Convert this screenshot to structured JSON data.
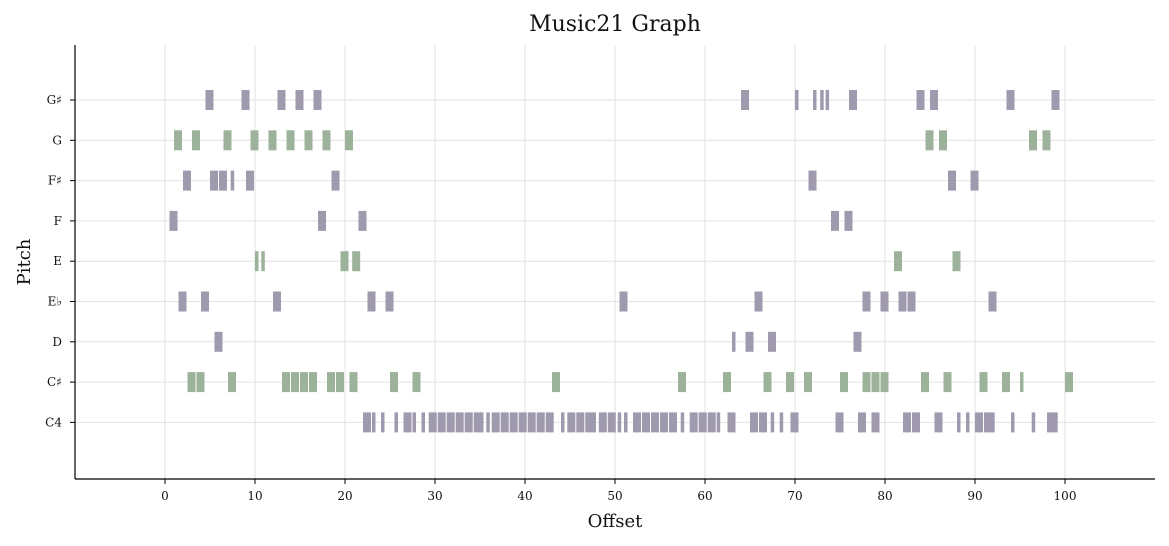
{
  "chart_data": {
    "type": "scatter",
    "title": "Music21 Graph",
    "xlabel": "Offset",
    "ylabel": "Pitch",
    "xlim": [
      -10,
      110
    ],
    "xticks": [
      0,
      10,
      20,
      30,
      40,
      50,
      60,
      70,
      80,
      90,
      100
    ],
    "pitches": [
      "C4",
      "C♯",
      "D",
      "E♭",
      "E",
      "F",
      "F♯",
      "G",
      "G♯"
    ],
    "grid": true,
    "colors": {
      "purple": "#a09aaf",
      "green": "#9cb29a",
      "grid": "#e2e2e2",
      "axis": "#000000"
    },
    "series": [
      {
        "pitch": "G♯",
        "color": "purple",
        "notes": [
          [
            4.5,
            1
          ],
          [
            8.5,
            1
          ],
          [
            12.5,
            1
          ],
          [
            14.5,
            1
          ],
          [
            16.5,
            1
          ],
          [
            64,
            1
          ],
          [
            70,
            0.5
          ],
          [
            72,
            0.5
          ],
          [
            72.8,
            0.5
          ],
          [
            73.4,
            0.5
          ],
          [
            76,
            1
          ],
          [
            83.5,
            1
          ],
          [
            85,
            1
          ],
          [
            93.5,
            1
          ],
          [
            98.5,
            1
          ]
        ]
      },
      {
        "pitch": "G",
        "color": "green",
        "notes": [
          [
            1,
            1
          ],
          [
            3,
            1
          ],
          [
            6.5,
            1
          ],
          [
            9.5,
            1
          ],
          [
            11.5,
            1
          ],
          [
            13.5,
            1
          ],
          [
            15.5,
            1
          ],
          [
            17.5,
            1
          ],
          [
            20,
            1
          ],
          [
            84.5,
            1
          ],
          [
            86,
            1
          ],
          [
            96,
            1
          ],
          [
            97.5,
            1
          ]
        ]
      },
      {
        "pitch": "F♯",
        "color": "purple",
        "notes": [
          [
            2,
            1
          ],
          [
            5,
            1
          ],
          [
            6,
            1
          ],
          [
            7.3,
            0.5
          ],
          [
            9,
            1
          ],
          [
            18.5,
            1
          ],
          [
            71.5,
            1
          ],
          [
            87,
            1
          ],
          [
            89.5,
            1
          ]
        ]
      },
      {
        "pitch": "F",
        "color": "purple",
        "notes": [
          [
            0.5,
            1
          ],
          [
            17,
            1
          ],
          [
            21.5,
            1
          ],
          [
            74,
            1
          ],
          [
            75.5,
            1
          ]
        ]
      },
      {
        "pitch": "E",
        "color": "green",
        "notes": [
          [
            10,
            0.5
          ],
          [
            10.7,
            0.5
          ],
          [
            19.5,
            1
          ],
          [
            20.8,
            1
          ],
          [
            81,
            1
          ],
          [
            87.5,
            1
          ]
        ]
      },
      {
        "pitch": "E♭",
        "color": "purple",
        "notes": [
          [
            1.5,
            1
          ],
          [
            4,
            1
          ],
          [
            12,
            1
          ],
          [
            22.5,
            1
          ],
          [
            24.5,
            1
          ],
          [
            50.5,
            1
          ],
          [
            65.5,
            1
          ],
          [
            77.5,
            1
          ],
          [
            79.5,
            1
          ],
          [
            81.5,
            1
          ],
          [
            82.5,
            1
          ],
          [
            91.5,
            1
          ]
        ]
      },
      {
        "pitch": "D",
        "color": "purple",
        "notes": [
          [
            5.5,
            1
          ],
          [
            63,
            0.5
          ],
          [
            64.5,
            1
          ],
          [
            67,
            1
          ],
          [
            76.5,
            1
          ]
        ]
      },
      {
        "pitch": "C♯",
        "color": "green",
        "notes": [
          [
            2.5,
            1
          ],
          [
            3.5,
            1
          ],
          [
            7,
            1
          ],
          [
            13,
            1
          ],
          [
            14,
            1
          ],
          [
            15,
            1
          ],
          [
            16,
            1
          ],
          [
            18,
            1
          ],
          [
            19,
            1
          ],
          [
            20.5,
            1
          ],
          [
            25,
            1
          ],
          [
            27.5,
            1
          ],
          [
            43,
            1
          ],
          [
            57,
            1
          ],
          [
            62,
            1
          ],
          [
            66.5,
            1
          ],
          [
            69,
            1
          ],
          [
            71,
            1
          ],
          [
            75,
            1
          ],
          [
            77.5,
            1
          ],
          [
            78.5,
            1
          ],
          [
            79.5,
            1
          ],
          [
            84,
            1
          ],
          [
            86.5,
            1
          ],
          [
            90.5,
            1
          ],
          [
            93,
            1
          ],
          [
            95,
            0.5
          ],
          [
            100,
            1
          ]
        ]
      },
      {
        "pitch": "C4",
        "color": "purple",
        "notes": [
          [
            22,
            1
          ],
          [
            23,
            0.5
          ],
          [
            24,
            0.5
          ],
          [
            25.5,
            0.5
          ],
          [
            26.5,
            1
          ],
          [
            27.5,
            0.5
          ],
          [
            28.5,
            0.5
          ],
          [
            29.3,
            1
          ],
          [
            30.3,
            1
          ],
          [
            31.3,
            1
          ],
          [
            32.3,
            1
          ],
          [
            33.3,
            1
          ],
          [
            34.3,
            1
          ],
          [
            35,
            0.5
          ],
          [
            35.7,
            0.5
          ],
          [
            36.3,
            1
          ],
          [
            37.3,
            1
          ],
          [
            38.3,
            1
          ],
          [
            39.3,
            1
          ],
          [
            40.3,
            1
          ],
          [
            41.3,
            1
          ],
          [
            42.3,
            1
          ],
          [
            44,
            0.5
          ],
          [
            44.7,
            1
          ],
          [
            45.7,
            1
          ],
          [
            46.7,
            1
          ],
          [
            47.5,
            0.5
          ],
          [
            48.2,
            1
          ],
          [
            49.2,
            1
          ],
          [
            50.3,
            0.5
          ],
          [
            51,
            0.5
          ],
          [
            52,
            1
          ],
          [
            53,
            1
          ],
          [
            54,
            1
          ],
          [
            55,
            1
          ],
          [
            56,
            1
          ],
          [
            57.3,
            0.5
          ],
          [
            58.3,
            1
          ],
          [
            59.3,
            1
          ],
          [
            60.3,
            1
          ],
          [
            61.3,
            0.5
          ],
          [
            62.5,
            1
          ],
          [
            65,
            1
          ],
          [
            66,
            1
          ],
          [
            67.3,
            0.5
          ],
          [
            68.3,
            0.5
          ],
          [
            69.5,
            1
          ],
          [
            74.5,
            1
          ],
          [
            77,
            1
          ],
          [
            78.5,
            1
          ],
          [
            82,
            1
          ],
          [
            83,
            1
          ],
          [
            85.5,
            1
          ],
          [
            88,
            0.5
          ],
          [
            89,
            0.5
          ],
          [
            90,
            1
          ],
          [
            91,
            1
          ],
          [
            91.8,
            0.5
          ],
          [
            94,
            0.5
          ],
          [
            96.3,
            0.5
          ],
          [
            98,
            1
          ],
          [
            98.8,
            0.5
          ]
        ]
      }
    ]
  }
}
